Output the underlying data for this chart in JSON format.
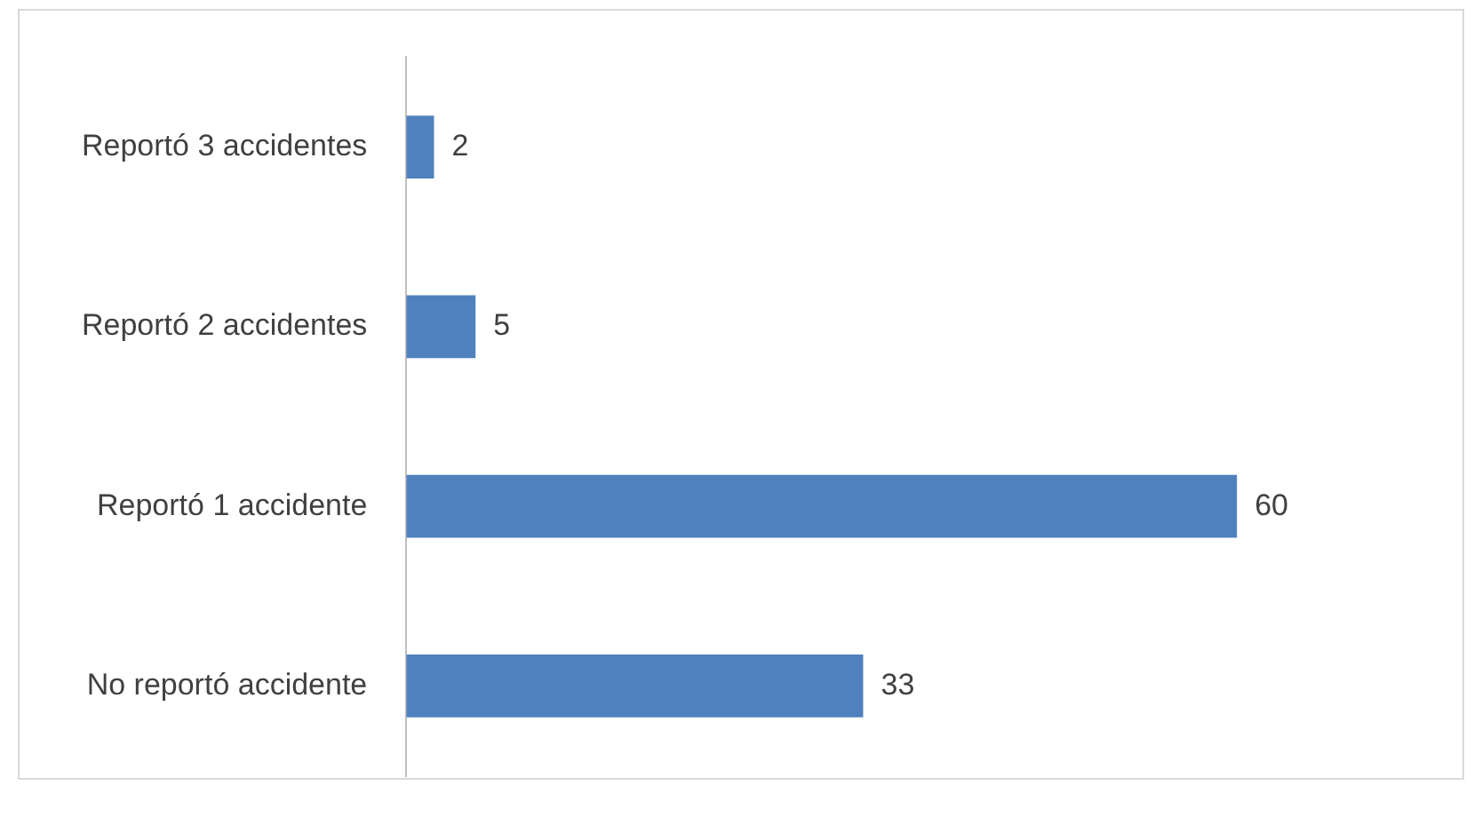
{
  "chart_data": {
    "type": "bar",
    "orientation": "horizontal",
    "categories": [
      "Reportó 3 accidentes",
      "Reportó 2 accidentes",
      "Reportó 1 accidente",
      "No reportó accidente"
    ],
    "values": [
      2,
      5,
      60,
      33
    ],
    "color": "#4f81bd",
    "data_labels": true,
    "grid": false,
    "legend": false
  }
}
